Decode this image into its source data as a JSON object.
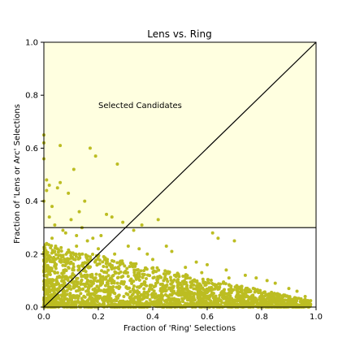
{
  "chart_data": {
    "type": "scatter",
    "title": "Lens vs. Ring",
    "xlabel": "Fraction of 'Ring' Selections",
    "ylabel": "Fraction of 'Lens or Arc' Selections",
    "xlim": [
      0,
      1
    ],
    "ylim": [
      0,
      1
    ],
    "x_ticks": [
      "0.0",
      "0.2",
      "0.4",
      "0.6",
      "0.8",
      "1.0"
    ],
    "y_ticks": [
      "0.0",
      "0.2",
      "0.4",
      "0.6",
      "0.8",
      "1.0"
    ],
    "grid": false,
    "annotation": "Selected Candidates",
    "threshold_y": 0.3,
    "diagonal": [
      [
        0,
        0
      ],
      [
        1,
        1
      ]
    ],
    "colors": {
      "points": "#bcbd22",
      "selected_region": "#ffffe0",
      "lines": "#000000"
    },
    "series": [
      {
        "x": [
          0.0,
          0.0,
          0.0,
          0.01,
          0.02,
          0.06,
          0.0,
          0.01,
          0.03,
          0.05,
          0.06,
          0.09,
          0.11,
          0.13,
          0.15,
          0.17,
          0.19,
          0.27,
          0.02,
          0.04,
          0.07,
          0.1,
          0.12,
          0.14,
          0.16,
          0.23,
          0.25,
          0.29,
          0.33,
          0.36,
          0.42,
          0.01,
          0.03,
          0.05,
          0.08,
          0.12,
          0.18,
          0.21,
          0.26,
          0.31,
          0.35,
          0.38,
          0.45,
          0.47,
          0.62,
          0.64,
          0.7,
          0.0,
          0.02,
          0.04,
          0.07,
          0.1,
          0.13,
          0.16,
          0.2,
          0.22,
          0.28,
          0.4,
          0.52,
          0.56,
          0.67,
          0.74,
          0.78,
          0.82,
          0.85,
          0.9,
          0.93,
          0.96,
          0.6,
          0.58,
          0.48,
          0.44,
          0.5,
          0.54,
          0.72,
          0.76,
          0.8,
          0.88,
          0.92,
          0.95,
          0.98,
          0.68,
          0.66,
          0.34,
          0.3,
          0.24,
          0.09,
          0.11,
          0.15,
          0.19,
          0.41,
          0.53
        ],
        "y": [
          0.65,
          0.62,
          0.56,
          0.48,
          0.46,
          0.61,
          0.4,
          0.44,
          0.38,
          0.45,
          0.47,
          0.43,
          0.52,
          0.36,
          0.4,
          0.6,
          0.57,
          0.54,
          0.34,
          0.31,
          0.29,
          0.33,
          0.27,
          0.3,
          0.25,
          0.35,
          0.34,
          0.32,
          0.29,
          0.31,
          0.33,
          0.24,
          0.26,
          0.22,
          0.28,
          0.23,
          0.26,
          0.27,
          0.2,
          0.23,
          0.22,
          0.2,
          0.23,
          0.21,
          0.28,
          0.26,
          0.25,
          0.2,
          0.18,
          0.21,
          0.19,
          0.17,
          0.2,
          0.18,
          0.22,
          0.19,
          0.17,
          0.18,
          0.15,
          0.17,
          0.14,
          0.12,
          0.11,
          0.1,
          0.09,
          0.07,
          0.06,
          0.04,
          0.16,
          0.13,
          0.12,
          0.1,
          0.09,
          0.08,
          0.07,
          0.06,
          0.05,
          0.04,
          0.03,
          0.02,
          0.01,
          0.11,
          0.09,
          0.14,
          0.13,
          0.16,
          0.15,
          0.14,
          0.12,
          0.11,
          0.08,
          0.05
        ]
      }
    ]
  }
}
